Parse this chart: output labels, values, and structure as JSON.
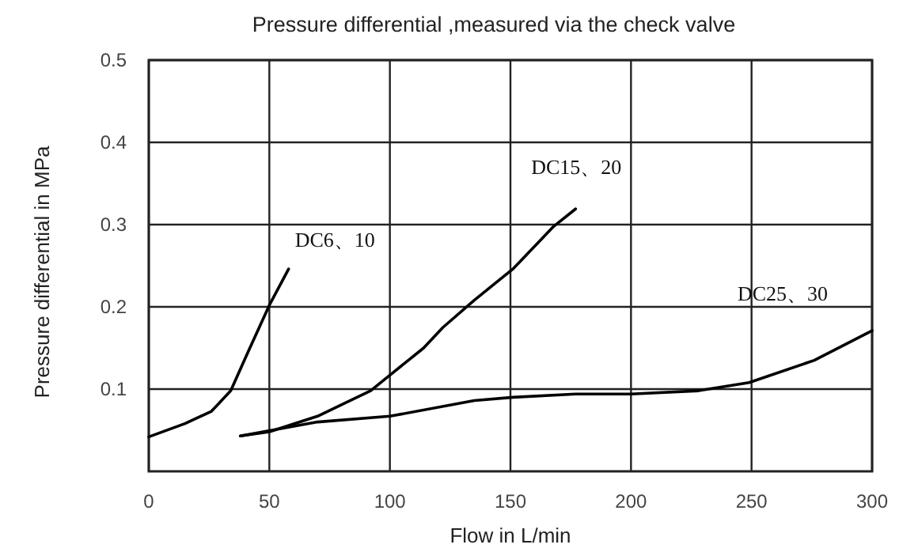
{
  "chart_data": {
    "type": "line",
    "title": "Pressure differential ,measured via the check valve",
    "xlabel": "Flow  in L/min",
    "ylabel": "Pressure differential in MPa",
    "xlim": [
      0,
      300
    ],
    "ylim": [
      0,
      0.5
    ],
    "xticks": [
      0,
      50,
      100,
      150,
      200,
      250,
      300
    ],
    "yticks": [
      0.1,
      0.2,
      0.3,
      0.4,
      0.5
    ],
    "grid": true,
    "marker": "none",
    "line_style": "solid",
    "series": [
      {
        "name": "DC6、10",
        "color": "#000000",
        "x": [
          0,
          15,
          26,
          34,
          41,
          50,
          58
        ],
        "values": [
          0.042,
          0.058,
          0.073,
          0.098,
          0.144,
          0.202,
          0.246
        ]
      },
      {
        "name": "DC15、20",
        "color": "#000000",
        "x": [
          38,
          50,
          70,
          92,
          100,
          114,
          122,
          135,
          151,
          168,
          177
        ],
        "values": [
          0.043,
          0.048,
          0.067,
          0.098,
          0.117,
          0.15,
          0.175,
          0.208,
          0.246,
          0.298,
          0.319
        ]
      },
      {
        "name": "DC25、30",
        "color": "#000000",
        "x": [
          38,
          70,
          100,
          135,
          151,
          177,
          200,
          228,
          249,
          276,
          300
        ],
        "values": [
          0.043,
          0.06,
          0.067,
          0.086,
          0.09,
          0.094,
          0.094,
          0.098,
          0.108,
          0.135,
          0.171
        ]
      }
    ]
  }
}
